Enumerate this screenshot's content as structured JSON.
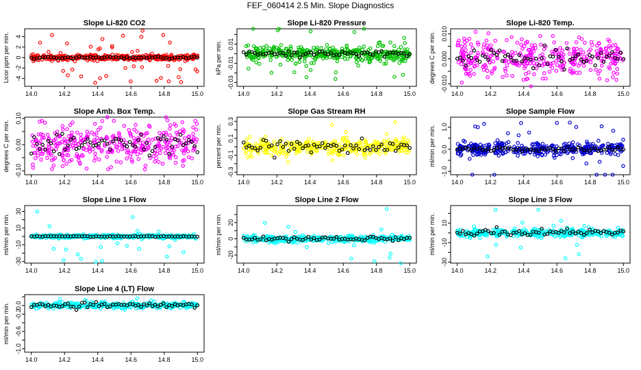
{
  "page": {
    "title": "FEF_060414  2.5 Min. Slope Diagnostics"
  },
  "chart_data": [
    {
      "type": "scatter",
      "title": "Slope Li-820 CO2",
      "ylabel": "Licor ppm per min.",
      "xlim": [
        14.0,
        15.0
      ],
      "xticks": [
        "14.0",
        "14.2",
        "14.4",
        "14.6",
        "14.8",
        "15.0"
      ],
      "ylim": [
        -5.5,
        5.5
      ],
      "yticks": [
        -4,
        -2,
        0,
        2,
        4
      ],
      "ytick_labels": [
        "-4",
        "-2",
        "0",
        "2",
        "4"
      ],
      "color": "#ff0000",
      "center": 0,
      "sd": 0.25,
      "spread": 1.0,
      "outliers": 40,
      "outlier_max": 5.2,
      "black_sd": 0.1,
      "seed": 1
    },
    {
      "type": "scatter",
      "title": "Slope Li-820 Pressure",
      "ylabel": "kPa per min.",
      "xlim": [
        14.0,
        15.0
      ],
      "xticks": [
        "14.0",
        "14.2",
        "14.4",
        "14.6",
        "14.8",
        "15.0"
      ],
      "ylim": [
        -0.034,
        0.026
      ],
      "yticks": [
        -0.03,
        -0.02,
        -0.01,
        0.0,
        0.01,
        0.02
      ],
      "ytick_labels": [
        "-0.03",
        "",
        "-0.01",
        "",
        "0.01",
        ""
      ],
      "color": "#00c000",
      "center": 0,
      "sd": 0.004,
      "spread": 1.0,
      "outliers": 25,
      "outlier_max": 0.031,
      "black_sd": 0.0015,
      "seed": 2
    },
    {
      "type": "scatter",
      "title": "Slope Li-820 Temp.",
      "ylabel": "degrees C per min.",
      "xlim": [
        14.0,
        15.0
      ],
      "xticks": [
        "14.0",
        "14.2",
        "14.4",
        "14.6",
        "14.8",
        "15.0"
      ],
      "ylim": [
        -0.011,
        0.012
      ],
      "yticks": [
        -0.01,
        -0.005,
        0.0,
        0.005,
        0.01
      ],
      "ytick_labels": [
        "-0.010",
        "",
        "0.000",
        "",
        "0.010"
      ],
      "color": "#ff00ff",
      "center": 0,
      "sd": 0.003,
      "spread": 1.3,
      "outliers": 12,
      "outlier_max": 0.01,
      "black_sd": 0.002,
      "seed": 3
    },
    {
      "type": "scatter",
      "title": "Slope Amb. Box Temp.",
      "ylabel": "degrees C per min.",
      "xlim": [
        14.0,
        15.0
      ],
      "xticks": [
        "14.0",
        "14.2",
        "14.4",
        "14.6",
        "14.8",
        "15.0"
      ],
      "ylim": [
        -0.115,
        0.105
      ],
      "yticks": [
        -0.1,
        -0.05,
        0.0,
        0.05,
        0.1
      ],
      "ytick_labels": [
        "-0.10",
        "",
        "0.00",
        "",
        "0.10"
      ],
      "color": "#ff00ff",
      "center": 0,
      "sd": 0.03,
      "spread": 1.3,
      "outliers": 10,
      "outlier_max": 0.1,
      "black_sd": 0.02,
      "seed": 4
    },
    {
      "type": "scatter",
      "title": "Slope Gas Stream RH",
      "ylabel": "percent per min.",
      "xlim": [
        14.0,
        15.0
      ],
      "xticks": [
        "14.0",
        "14.2",
        "14.4",
        "14.6",
        "14.8",
        "15.0"
      ],
      "ylim": [
        -0.33,
        0.35
      ],
      "yticks": [
        -0.3,
        -0.2,
        -0.1,
        0.0,
        0.1,
        0.2,
        0.3
      ],
      "ytick_labels": [
        "-0.3",
        "",
        "-0.1",
        "",
        "0.1",
        "",
        "0.3"
      ],
      "color": "#ffff00",
      "center": 0,
      "sd": 0.05,
      "spread": 1.0,
      "outliers": 6,
      "outlier_max": 0.33,
      "black_sd": 0.04,
      "seed": 5
    },
    {
      "type": "scatter",
      "title": "Slope Sample Flow",
      "ylabel": "ml/min per min.",
      "xlim": [
        14.0,
        15.0
      ],
      "xticks": [
        "14.0",
        "14.2",
        "14.4",
        "14.6",
        "14.8",
        "15.0"
      ],
      "ylim": [
        -1.15,
        1.45
      ],
      "yticks": [
        -1,
        -0.5,
        0,
        0.5,
        1
      ],
      "ytick_labels": [
        "-1.0",
        "",
        "0.0",
        "",
        "1.0"
      ],
      "color": "#0000d0",
      "center": 0,
      "sd": 0.15,
      "spread": 1.0,
      "outliers": 30,
      "outlier_max": 1.35,
      "black_sd": 0.05,
      "seed": 6
    },
    {
      "type": "scatter",
      "title": "Slope Line 1 Flow",
      "ylabel": "ml/min per min.",
      "xlim": [
        14.0,
        15.0
      ],
      "xticks": [
        "14.0",
        "14.2",
        "14.4",
        "14.6",
        "14.8",
        "15.0"
      ],
      "ylim": [
        -32,
        37
      ],
      "yticks": [
        -30,
        -20,
        -10,
        0,
        10,
        20,
        30
      ],
      "ytick_labels": [
        "-30",
        "",
        "-10",
        "",
        "10",
        "",
        "30"
      ],
      "color": "#00ffff",
      "center": 0,
      "sd": 1.0,
      "spread": 1.0,
      "outliers": 20,
      "outlier_max": 31,
      "black_sd": 0.2,
      "seed": 7
    },
    {
      "type": "scatter",
      "title": "Slope Line 2 Flow",
      "ylabel": "ml/min per min.",
      "xlim": [
        14.0,
        15.0
      ],
      "xticks": [
        "14.0",
        "14.2",
        "14.4",
        "14.6",
        "14.8",
        "15.0"
      ],
      "ylim": [
        -30,
        41
      ],
      "yticks": [
        -20,
        -10,
        0,
        10,
        20,
        30
      ],
      "ytick_labels": [
        "-20",
        "",
        "0",
        "",
        "20",
        ""
      ],
      "color": "#00ffff",
      "center": 0,
      "sd": 2.0,
      "spread": 1.0,
      "outliers": 18,
      "outlier_max": 38,
      "black_sd": 1.5,
      "seed": 8
    },
    {
      "type": "scatter",
      "title": "Slope Line 3 Flow",
      "ylabel": "ml/min per min.",
      "xlim": [
        14.0,
        15.0
      ],
      "xticks": [
        "14.0",
        "14.2",
        "14.4",
        "14.6",
        "14.8",
        "15.0"
      ],
      "ylim": [
        -31,
        28
      ],
      "yticks": [
        -30,
        -20,
        -10,
        0,
        10,
        20
      ],
      "ytick_labels": [
        "-30",
        "",
        "-10",
        "",
        "10",
        ""
      ],
      "color": "#00ffff",
      "center": 0,
      "sd": 2.0,
      "spread": 1.0,
      "outliers": 15,
      "outlier_max": 28,
      "black_sd": 1.5,
      "seed": 9
    },
    {
      "type": "scatter",
      "title": "Slope Line 4 (LT) Flow",
      "ylabel": "ml/min per min.",
      "xlim": [
        14.0,
        15.0
      ],
      "xticks": [
        "14.0",
        "14.2",
        "14.4",
        "14.6",
        "14.8",
        "15.0"
      ],
      "ylim": [
        -1.08,
        0.25
      ],
      "yticks": [
        -1.0,
        -0.8,
        -0.6,
        -0.4,
        -0.2,
        0.0,
        0.2
      ],
      "ytick_labels": [
        "-1.0",
        "",
        "-0.6",
        "",
        "-0.2",
        "0.0",
        ""
      ],
      "color": "#00ffff",
      "center": 0,
      "sd": 0.035,
      "spread": 1.0,
      "outliers": 6,
      "outlier_max": 0.2,
      "black_sd": 0.03,
      "seed": 10
    }
  ]
}
